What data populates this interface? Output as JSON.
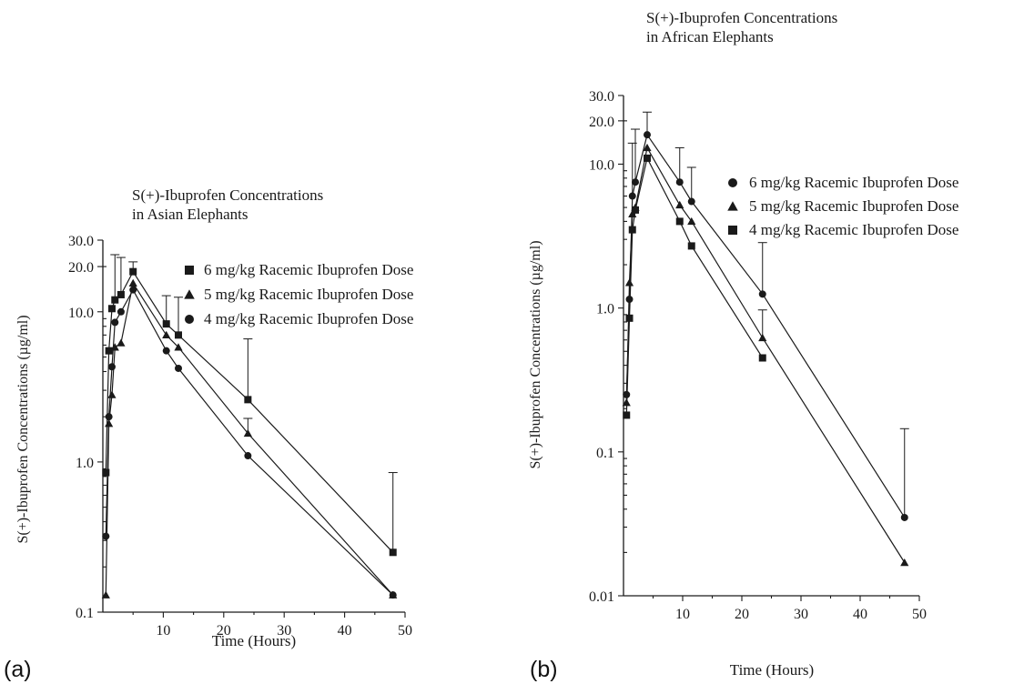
{
  "chart_data": [
    {
      "panel_label": "(a)",
      "type": "line",
      "title_lines": [
        "S(+)-Ibuprofen Concentrations",
        "in Asian Elephants"
      ],
      "xlabel": "Time (Hours)",
      "ylabel": "S(+)-Ibuprofen Concentrations (µg/ml)",
      "xlim": [
        0,
        50
      ],
      "ylim": [
        0.1,
        30
      ],
      "yscale": "log",
      "xticks": [
        10,
        20,
        30,
        40,
        50
      ],
      "xtick_labels": [
        "10",
        "20",
        "30",
        "40",
        "50"
      ],
      "yticks": [
        0.1,
        1,
        10,
        20,
        30
      ],
      "ytick_labels": [
        "0.1",
        "1.0",
        "10.0",
        "20.0",
        "30.0"
      ],
      "legend_position": "top-right",
      "series": [
        {
          "name": "6 mg/kg Racemic Ibuprofen Dose",
          "marker": "square",
          "x": [
            0.5,
            1.0,
            1.5,
            2.0,
            3.0,
            5.0,
            10.5,
            12.5,
            24.0,
            48.0
          ],
          "y": [
            0.85,
            5.5,
            10.5,
            12.0,
            13.0,
            18.5,
            8.3,
            7.0,
            2.6,
            0.25
          ],
          "err": [
            null,
            null,
            null,
            12.0,
            10.0,
            3.0,
            4.5,
            5.5,
            4.0,
            0.6
          ]
        },
        {
          "name": "5 mg/kg Racemic Ibuprofen Dose",
          "marker": "triangle",
          "x": [
            0.5,
            1.0,
            1.5,
            2.0,
            3.0,
            5.0,
            10.5,
            12.5,
            24.0,
            48.0
          ],
          "y": [
            0.13,
            1.8,
            2.8,
            5.8,
            6.2,
            15.5,
            7.0,
            5.8,
            1.55,
            0.13
          ],
          "err": [
            null,
            null,
            null,
            null,
            null,
            null,
            null,
            null,
            0.4,
            null
          ]
        },
        {
          "name": "4 mg/kg Racemic Ibuprofen Dose",
          "marker": "circle",
          "x": [
            0.5,
            1.0,
            1.5,
            2.0,
            3.0,
            5.0,
            10.5,
            12.5,
            24.0,
            48.0
          ],
          "y": [
            0.32,
            2.0,
            4.3,
            8.5,
            10.0,
            14.0,
            5.5,
            4.2,
            1.1,
            0.13
          ],
          "err": [
            null,
            null,
            null,
            null,
            null,
            null,
            null,
            null,
            null,
            null
          ]
        }
      ]
    },
    {
      "panel_label": "(b)",
      "type": "line",
      "title_lines": [
        "S(+)-Ibuprofen Concentrations",
        "in African Elephants"
      ],
      "xlabel": "Time (Hours)",
      "ylabel": "S(+)-Ibuprofen Concentrations (µg/ml)",
      "xlim": [
        0,
        50
      ],
      "ylim": [
        0.01,
        30
      ],
      "yscale": "log",
      "xticks": [
        10,
        20,
        30,
        40,
        50
      ],
      "xtick_labels": [
        "10",
        "20",
        "30",
        "40",
        "50"
      ],
      "yticks": [
        0.01,
        0.1,
        1,
        10,
        20,
        30
      ],
      "ytick_labels": [
        "0.01",
        "0.1",
        "1.0",
        "10.0",
        "20.0",
        "30.0"
      ],
      "legend_position": "top-right",
      "series": [
        {
          "name": "6 mg/kg Racemic Ibuprofen Dose",
          "marker": "circle",
          "x": [
            0.5,
            1.0,
            1.5,
            2.0,
            4.0,
            9.5,
            11.5,
            23.5,
            47.5
          ],
          "y": [
            0.25,
            1.15,
            6.0,
            7.5,
            16.0,
            7.5,
            5.5,
            1.25,
            0.035
          ],
          "err": [
            null,
            null,
            8.0,
            10.0,
            7.0,
            5.5,
            4.0,
            1.6,
            0.11
          ]
        },
        {
          "name": "5 mg/kg Racemic Ibuprofen Dose",
          "marker": "triangle",
          "x": [
            0.5,
            1.0,
            1.5,
            2.0,
            4.0,
            9.5,
            11.5,
            23.5,
            47.5
          ],
          "y": [
            0.22,
            1.5,
            4.5,
            5.0,
            13.0,
            5.2,
            4.0,
            0.62,
            0.017
          ],
          "err": [
            null,
            null,
            null,
            null,
            null,
            null,
            null,
            0.35,
            null
          ]
        },
        {
          "name": "4 mg/kg Racemic Ibuprofen Dose",
          "marker": "square",
          "x": [
            0.5,
            1.0,
            1.5,
            2.0,
            4.0,
            9.5,
            11.5,
            23.5
          ],
          "y": [
            0.18,
            0.85,
            3.5,
            4.8,
            11.0,
            4.0,
            2.7,
            0.45
          ],
          "err": [
            null,
            null,
            null,
            null,
            null,
            null,
            null,
            null
          ]
        }
      ]
    }
  ]
}
